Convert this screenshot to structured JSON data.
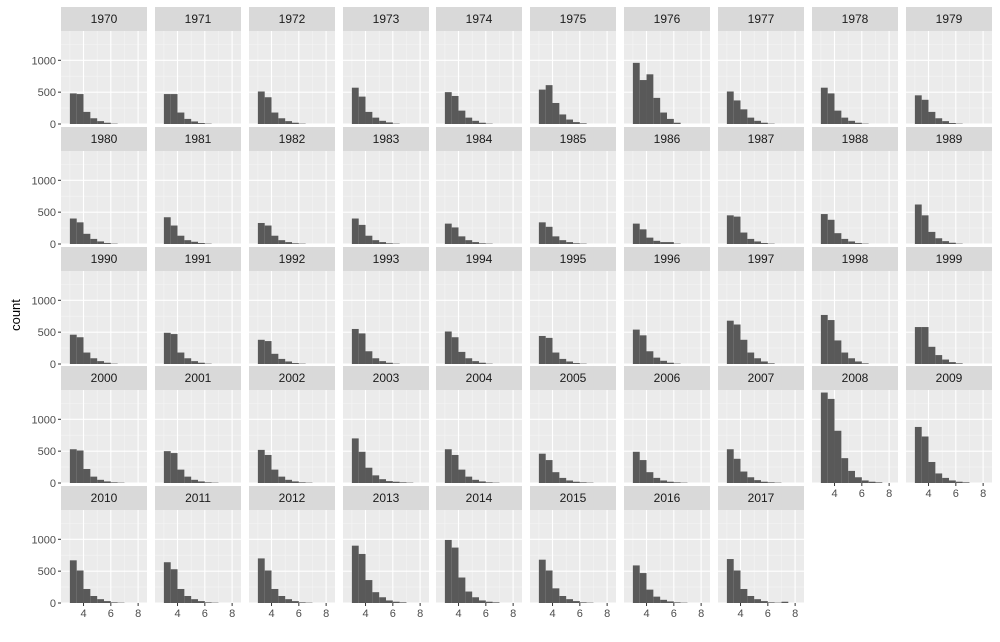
{
  "chart_data": {
    "type": "bar",
    "subtype": "faceted-histogram",
    "ylabel": "count",
    "xlabel": "",
    "x_ticks": [
      4,
      6,
      8
    ],
    "y_ticks": [
      0,
      500,
      1000
    ],
    "xlim": [
      2.35,
      8.65
    ],
    "ylim": [
      0,
      1460
    ],
    "bin_starts": [
      3.0,
      3.5,
      4.0,
      4.5,
      5.0,
      5.5,
      6.0,
      6.5,
      7.0,
      7.5
    ],
    "bin_width": 0.5,
    "bar_color": "#595959",
    "panel_background": "#ebebeb",
    "strip_background": "#d9d9d9",
    "facet_columns": 10,
    "facets": [
      {
        "label": "1970",
        "counts": [
          480,
          470,
          190,
          90,
          45,
          20,
          5,
          0,
          0,
          0
        ]
      },
      {
        "label": "1971",
        "counts": [
          470,
          470,
          180,
          80,
          40,
          15,
          5,
          0,
          0,
          0
        ]
      },
      {
        "label": "1972",
        "counts": [
          510,
          420,
          180,
          90,
          45,
          20,
          5,
          0,
          0,
          0
        ]
      },
      {
        "label": "1973",
        "counts": [
          570,
          430,
          190,
          100,
          50,
          25,
          5,
          0,
          0,
          0
        ]
      },
      {
        "label": "1974",
        "counts": [
          500,
          440,
          210,
          100,
          50,
          20,
          5,
          0,
          0,
          0
        ]
      },
      {
        "label": "1975",
        "counts": [
          540,
          610,
          330,
          150,
          70,
          30,
          10,
          0,
          0,
          0
        ]
      },
      {
        "label": "1976",
        "counts": [
          960,
          690,
          780,
          410,
          180,
          80,
          20,
          0,
          0,
          0
        ]
      },
      {
        "label": "1977",
        "counts": [
          510,
          370,
          230,
          100,
          50,
          20,
          5,
          0,
          0,
          0
        ]
      },
      {
        "label": "1978",
        "counts": [
          570,
          480,
          210,
          100,
          50,
          20,
          5,
          0,
          0,
          0
        ]
      },
      {
        "label": "1979",
        "counts": [
          450,
          380,
          190,
          90,
          45,
          15,
          5,
          0,
          0,
          0
        ]
      },
      {
        "label": "1980",
        "counts": [
          400,
          340,
          160,
          80,
          40,
          15,
          5,
          0,
          0,
          0
        ]
      },
      {
        "label": "1981",
        "counts": [
          420,
          290,
          130,
          60,
          35,
          15,
          5,
          0,
          0,
          0
        ]
      },
      {
        "label": "1982",
        "counts": [
          330,
          290,
          130,
          60,
          30,
          10,
          5,
          0,
          0,
          0
        ]
      },
      {
        "label": "1983",
        "counts": [
          400,
          300,
          130,
          60,
          30,
          10,
          5,
          0,
          0,
          0
        ]
      },
      {
        "label": "1984",
        "counts": [
          320,
          260,
          120,
          60,
          30,
          10,
          5,
          0,
          0,
          0
        ]
      },
      {
        "label": "1985",
        "counts": [
          340,
          270,
          120,
          60,
          30,
          10,
          5,
          0,
          0,
          0
        ]
      },
      {
        "label": "1986",
        "counts": [
          320,
          230,
          100,
          50,
          30,
          30,
          5,
          0,
          0,
          0
        ]
      },
      {
        "label": "1987",
        "counts": [
          450,
          430,
          180,
          80,
          40,
          15,
          5,
          0,
          0,
          0
        ]
      },
      {
        "label": "1988",
        "counts": [
          470,
          380,
          170,
          80,
          40,
          15,
          5,
          0,
          0,
          0
        ]
      },
      {
        "label": "1989",
        "counts": [
          620,
          450,
          190,
          90,
          45,
          20,
          5,
          0,
          0,
          0
        ]
      },
      {
        "label": "1990",
        "counts": [
          460,
          420,
          180,
          90,
          45,
          20,
          5,
          0,
          0,
          0
        ]
      },
      {
        "label": "1991",
        "counts": [
          490,
          470,
          180,
          90,
          45,
          20,
          5,
          0,
          0,
          0
        ]
      },
      {
        "label": "1992",
        "counts": [
          380,
          360,
          160,
          80,
          40,
          15,
          5,
          0,
          0,
          0
        ]
      },
      {
        "label": "1993",
        "counts": [
          550,
          480,
          200,
          90,
          45,
          20,
          5,
          0,
          0,
          0
        ]
      },
      {
        "label": "1994",
        "counts": [
          510,
          420,
          190,
          90,
          45,
          20,
          5,
          0,
          0,
          0
        ]
      },
      {
        "label": "1995",
        "counts": [
          440,
          410,
          180,
          80,
          40,
          15,
          5,
          0,
          0,
          0
        ]
      },
      {
        "label": "1996",
        "counts": [
          540,
          450,
          200,
          100,
          50,
          20,
          5,
          0,
          0,
          0
        ]
      },
      {
        "label": "1997",
        "counts": [
          680,
          620,
          380,
          180,
          90,
          40,
          10,
          0,
          0,
          0
        ]
      },
      {
        "label": "1998",
        "counts": [
          770,
          690,
          370,
          180,
          90,
          40,
          10,
          0,
          0,
          0
        ]
      },
      {
        "label": "1999",
        "counts": [
          580,
          580,
          270,
          140,
          70,
          30,
          10,
          0,
          0,
          0
        ]
      },
      {
        "label": "2000",
        "counts": [
          530,
          510,
          220,
          100,
          50,
          25,
          10,
          5,
          0,
          0
        ]
      },
      {
        "label": "2001",
        "counts": [
          500,
          470,
          210,
          100,
          50,
          25,
          10,
          5,
          0,
          0
        ]
      },
      {
        "label": "2002",
        "counts": [
          520,
          440,
          210,
          100,
          50,
          25,
          10,
          5,
          0,
          0
        ]
      },
      {
        "label": "2003",
        "counts": [
          700,
          490,
          240,
          120,
          60,
          30,
          20,
          10,
          5,
          0
        ]
      },
      {
        "label": "2004",
        "counts": [
          530,
          440,
          210,
          100,
          50,
          25,
          10,
          5,
          0,
          0
        ]
      },
      {
        "label": "2005",
        "counts": [
          460,
          360,
          170,
          80,
          40,
          20,
          10,
          5,
          0,
          0
        ]
      },
      {
        "label": "2006",
        "counts": [
          490,
          360,
          170,
          80,
          40,
          20,
          10,
          5,
          0,
          0
        ]
      },
      {
        "label": "2007",
        "counts": [
          530,
          380,
          180,
          90,
          45,
          20,
          10,
          5,
          0,
          0
        ]
      },
      {
        "label": "2008",
        "counts": [
          1420,
          1320,
          820,
          390,
          190,
          90,
          40,
          20,
          10,
          0
        ]
      },
      {
        "label": "2009",
        "counts": [
          880,
          730,
          330,
          150,
          80,
          40,
          20,
          10,
          0,
          0
        ]
      },
      {
        "label": "2010",
        "counts": [
          670,
          510,
          220,
          110,
          60,
          30,
          10,
          5,
          0,
          0
        ]
      },
      {
        "label": "2011",
        "counts": [
          640,
          530,
          220,
          110,
          60,
          30,
          10,
          5,
          0,
          0
        ]
      },
      {
        "label": "2012",
        "counts": [
          700,
          510,
          220,
          110,
          60,
          30,
          10,
          5,
          0,
          0
        ]
      },
      {
        "label": "2013",
        "counts": [
          900,
          770,
          360,
          170,
          90,
          40,
          20,
          10,
          0,
          0
        ]
      },
      {
        "label": "2014",
        "counts": [
          990,
          870,
          400,
          180,
          90,
          40,
          20,
          10,
          0,
          0
        ]
      },
      {
        "label": "2015",
        "counts": [
          680,
          510,
          230,
          110,
          60,
          30,
          10,
          5,
          0,
          0
        ]
      },
      {
        "label": "2016",
        "counts": [
          590,
          470,
          210,
          100,
          50,
          25,
          10,
          5,
          0,
          0
        ]
      },
      {
        "label": "2017",
        "counts": [
          690,
          510,
          220,
          110,
          60,
          30,
          10,
          5,
          20,
          0
        ]
      }
    ]
  }
}
